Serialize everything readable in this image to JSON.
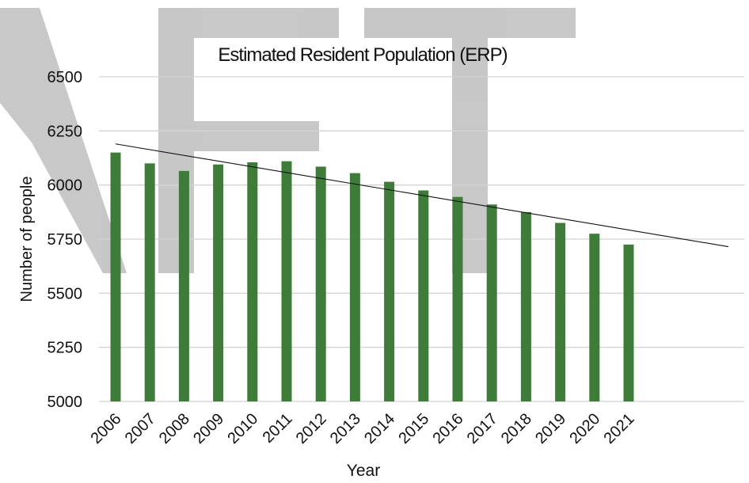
{
  "colors": {
    "bar": "#3f7c3a",
    "trendline": "#111111",
    "grid": "#d4d4d4",
    "watermark": "#b5b5b5"
  },
  "chart_data": {
    "type": "bar",
    "title": "Estimated Resident Population (ERP)",
    "xlabel": "Year",
    "ylabel": "Number of people",
    "ylim": [
      5000,
      6500
    ],
    "yticks": [
      "5000",
      "5250",
      "5500",
      "5750",
      "6000",
      "6250",
      "6500"
    ],
    "categories": [
      "2006",
      "2007",
      "2008",
      "2009",
      "2010",
      "2011",
      "2012",
      "2013",
      "2014",
      "2015",
      "2016",
      "2017",
      "2018",
      "2019",
      "2020",
      "2021"
    ],
    "series": [
      {
        "values": [
          6150,
          6100,
          6065,
          6095,
          6105,
          6110,
          6085,
          6055,
          6015,
          5975,
          5945,
          5910,
          5875,
          5825,
          5775,
          5725
        ]
      }
    ],
    "trendline": {
      "type": "linear",
      "start_value": 6190,
      "end_value": 5715
    },
    "grid": true,
    "legend": "none"
  }
}
